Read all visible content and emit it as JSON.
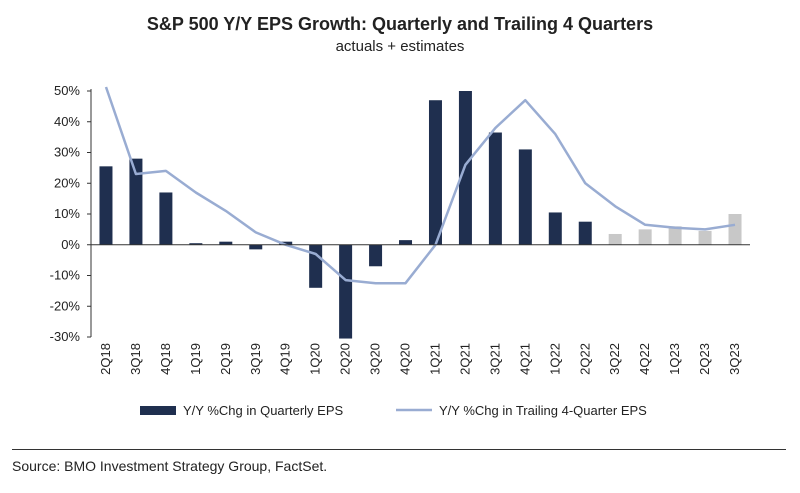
{
  "chart_data": {
    "type": "bar+line",
    "title": "S&P 500 Y/Y EPS Growth: Quarterly and Trailing 4 Quarters",
    "subtitle": "actuals + estimates",
    "categories": [
      "2Q18",
      "3Q18",
      "4Q18",
      "1Q19",
      "2Q19",
      "3Q19",
      "4Q19",
      "1Q20",
      "2Q20",
      "3Q20",
      "4Q20",
      "1Q21",
      "2Q21",
      "3Q21",
      "4Q21",
      "1Q22",
      "2Q22",
      "3Q22",
      "4Q22",
      "1Q23",
      "2Q23",
      "3Q23"
    ],
    "series": [
      {
        "name": "Y/Y %Chg in Quarterly EPS",
        "kind": "bar",
        "values": [
          25.5,
          28,
          17,
          0.5,
          1,
          -1.5,
          1,
          -14,
          -30.5,
          -7,
          1.5,
          47,
          50,
          36.5,
          31,
          10.5,
          7.5,
          3.5,
          5,
          6,
          4.5,
          10
        ],
        "estimate": [
          false,
          false,
          false,
          false,
          false,
          false,
          false,
          false,
          false,
          false,
          false,
          false,
          false,
          false,
          false,
          false,
          false,
          true,
          true,
          true,
          true,
          true
        ]
      },
      {
        "name": "Y/Y %Chg in Trailing 4-Quarter EPS",
        "kind": "line",
        "values": [
          51.5,
          23,
          24,
          17,
          11,
          4,
          0,
          -3,
          -11.5,
          -12.5,
          -12.5,
          0,
          26,
          38,
          47,
          36,
          20,
          12.5,
          6.5,
          5.5,
          5,
          6.5
        ]
      }
    ],
    "ylim": [
      -30,
      50
    ],
    "yticks": [
      50,
      40,
      30,
      20,
      10,
      0,
      -10,
      -20,
      -30
    ],
    "ytick_format": "%",
    "colors": {
      "actual_bar": "#1f2f4f",
      "estimate_bar": "#c8c8c8",
      "line": "#99acd2",
      "axis": "#333333"
    },
    "legend_position": "bottom"
  },
  "source_note": "Source: BMO Investment Strategy Group, FactSet."
}
